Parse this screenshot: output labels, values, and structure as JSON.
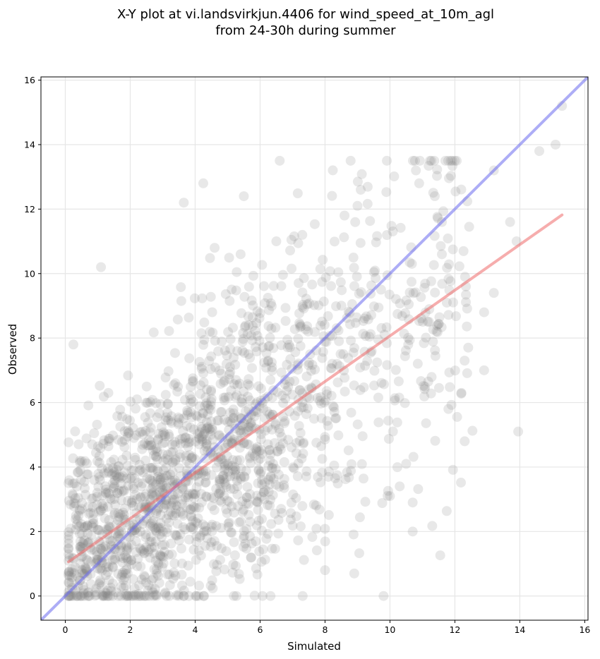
{
  "chart_data": {
    "type": "scatter",
    "title_lines": [
      "X-Y plot at vi.landsvirkjun.4406 for wind_speed_at_10m_agl",
      "from 24-30h during summer"
    ],
    "xlabel": "Simulated",
    "ylabel": "Observed",
    "xlim": [
      -0.75,
      16.1
    ],
    "ylim": [
      -0.75,
      16.1
    ],
    "xticks": [
      "0",
      "2",
      "4",
      "6",
      "8",
      "10",
      "12",
      "14",
      "16"
    ],
    "yticks": [
      "0",
      "2",
      "4",
      "6",
      "8",
      "10",
      "12",
      "14",
      "16"
    ],
    "grid": true,
    "legend": "none",
    "colors": {
      "points": "#808080",
      "identity_line": "#6a6aee",
      "fit_line": "#ee6a6a",
      "grid": "#e6e6e6"
    },
    "identity_line": {
      "x": [
        -0.75,
        16.1
      ],
      "y": [
        -0.75,
        16.1
      ]
    },
    "fit_line": {
      "x": [
        0.1,
        15.3
      ],
      "y": [
        1.06,
        11.82
      ]
    },
    "highlighted_points": [
      {
        "x": 0.25,
        "y": 7.8
      },
      {
        "x": 1.1,
        "y": 10.2
      },
      {
        "x": 3.65,
        "y": 12.2
      },
      {
        "x": 4.25,
        "y": 12.8
      },
      {
        "x": 5.5,
        "y": 12.4
      },
      {
        "x": 5.4,
        "y": 10.6
      },
      {
        "x": 4.6,
        "y": 10.8
      },
      {
        "x": 6.5,
        "y": 11.0
      },
      {
        "x": 9.1,
        "y": 12.6
      },
      {
        "x": 9.0,
        "y": 12.1
      },
      {
        "x": 10.8,
        "y": 13.2
      },
      {
        "x": 10.9,
        "y": 12.8
      },
      {
        "x": 14.6,
        "y": 13.8
      },
      {
        "x": 15.1,
        "y": 14.0
      },
      {
        "x": 15.3,
        "y": 15.2
      },
      {
        "x": 13.2,
        "y": 13.2
      },
      {
        "x": 13.95,
        "y": 5.1
      },
      {
        "x": 11.8,
        "y": 5.8
      },
      {
        "x": 8.9,
        "y": 0.7
      },
      {
        "x": 8.0,
        "y": 0.8
      },
      {
        "x": 10.7,
        "y": 2.0
      },
      {
        "x": 12.9,
        "y": 7.0
      },
      {
        "x": 13.2,
        "y": 9.4
      },
      {
        "x": 12.3,
        "y": 7.3
      },
      {
        "x": 12.2,
        "y": 6.3
      },
      {
        "x": 11.6,
        "y": 10.6
      },
      {
        "x": 11.6,
        "y": 11.6
      },
      {
        "x": 13.9,
        "y": 11.0
      },
      {
        "x": 13.7,
        "y": 11.6
      },
      {
        "x": 12.9,
        "y": 8.8
      },
      {
        "x": 10.3,
        "y": 3.4
      },
      {
        "x": 10.7,
        "y": 2.9
      },
      {
        "x": 10.0,
        "y": 3.1
      },
      {
        "x": 10.5,
        "y": 4.1
      },
      {
        "x": 7.3,
        "y": 11.2
      },
      {
        "x": 8.6,
        "y": 11.8
      }
    ],
    "point_cloud": {
      "n_points": 1800,
      "description_params": {
        "x_range": [
          0.1,
          15.3
        ],
        "y_range": [
          0.0,
          15.2
        ],
        "fit_slope": 0.708,
        "fit_intercept": 0.99
      }
    }
  }
}
